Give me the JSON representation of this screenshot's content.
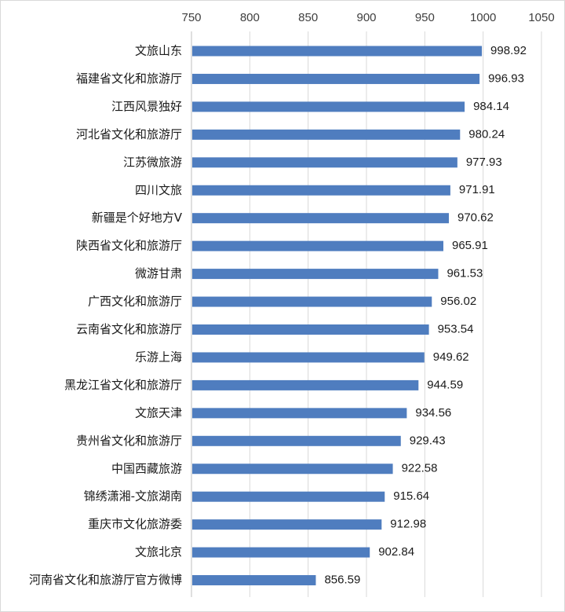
{
  "chart_data": {
    "type": "bar",
    "orientation": "horizontal",
    "title": "",
    "xlabel": "",
    "ylabel": "",
    "xlim": [
      750,
      1050
    ],
    "x_ticks": [
      750,
      800,
      850,
      900,
      950,
      1000,
      1050
    ],
    "x_axis_position": "top",
    "grid": true,
    "legend": "none",
    "bar_color": "#4f7dbf",
    "categories": [
      "文旅山东",
      "福建省文化和旅游厅",
      "江西风景独好",
      "河北省文化和旅游厅",
      "江苏微旅游",
      "四川文旅",
      "新疆是个好地方V",
      "陕西省文化和旅游厅",
      "微游甘肃",
      "广西文化和旅游厅",
      "云南省文化和旅游厅",
      "乐游上海",
      "黑龙江省文化和旅游厅",
      "文旅天津",
      "贵州省文化和旅游厅",
      "中国西藏旅游",
      "锦绣潇湘-文旅湖南",
      "重庆市文化旅游委",
      "文旅北京",
      "河南省文化和旅游厅官方微博"
    ],
    "values": [
      998.92,
      996.93,
      984.14,
      980.24,
      977.93,
      971.91,
      970.62,
      965.91,
      961.53,
      956.02,
      953.54,
      949.62,
      944.59,
      934.56,
      929.43,
      922.58,
      915.64,
      912.98,
      902.84,
      856.59
    ],
    "value_labels": [
      "998.92",
      "996.93",
      "984.14",
      "980.24",
      "977.93",
      "971.91",
      "970.62",
      "965.91",
      "961.53",
      "956.02",
      "953.54",
      "949.62",
      "944.59",
      "934.56",
      "929.43",
      "922.58",
      "915.64",
      "912.98",
      "902.84",
      "856.59"
    ]
  }
}
